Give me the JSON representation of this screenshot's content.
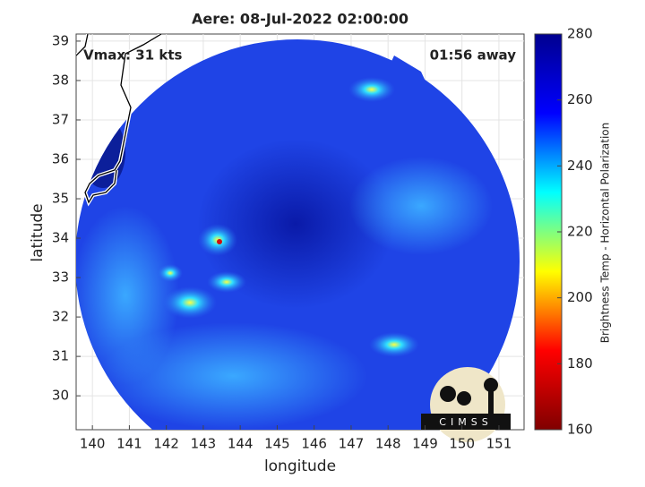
{
  "chart_data": {
    "type": "image",
    "title": "Aere: 08-Jul-2022 02:00:00",
    "annotations": [
      "Vmax: 31 kts",
      "01:56 away"
    ],
    "xlabel": "longitude",
    "ylabel": "latitude",
    "xlim": [
      139.56,
      151.68
    ],
    "xticks": [
      140,
      141,
      142,
      143,
      144,
      145,
      146,
      147,
      148,
      149,
      150,
      151
    ],
    "ylim": [
      29.14,
      39.18
    ],
    "yticks": [
      30,
      31,
      32,
      33,
      34,
      35,
      36,
      37,
      38,
      39
    ],
    "grid": true,
    "colorbar": {
      "label": "Brightness Temp - Horizontal Polarization",
      "lim": [
        160,
        280
      ],
      "ticks": [
        160,
        180,
        200,
        220,
        240,
        260,
        280
      ],
      "colormap": [
        "#800000",
        "#ff0000",
        "#ffff00",
        "#00ffff",
        "#0000ff",
        "#00008f"
      ]
    },
    "logo": "CIMSS"
  }
}
